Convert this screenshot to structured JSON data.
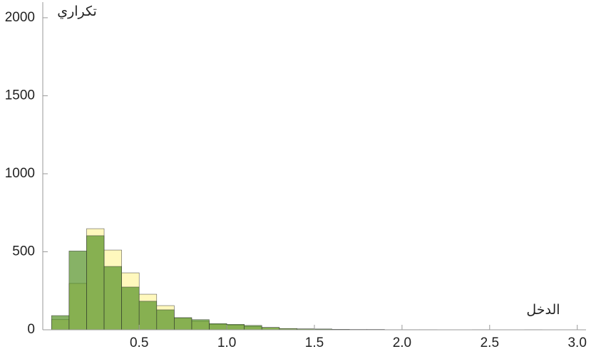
{
  "chart_data": {
    "type": "histogram",
    "x_label": "الدخل",
    "y_label": "تكراري",
    "bins": [
      0,
      0.1,
      0.2,
      0.3,
      0.4,
      0.5,
      0.6,
      0.7,
      0.8,
      0.9,
      1.0,
      1.1,
      1.2,
      1.3,
      1.4,
      1.5,
      1.6,
      1.7,
      1.8,
      1.9,
      2.0,
      2.1,
      2.2,
      2.3,
      2.4,
      2.5,
      2.6,
      2.7,
      2.8
    ],
    "series": [
      {
        "color": "#fff8bd",
        "opacity": 1,
        "values": [
          65,
          297,
          648,
          511,
          365,
          228,
          155,
          75,
          55,
          35,
          30,
          20,
          15,
          8,
          5,
          4,
          3,
          2,
          2,
          1,
          1,
          1,
          0,
          0,
          1,
          0,
          0,
          1
        ]
      },
      {
        "color": "#4e8e1e",
        "opacity": 0.68,
        "values": [
          91,
          505,
          603,
          406,
          274,
          183,
          128,
          78,
          65,
          40,
          35,
          28,
          15,
          8,
          6,
          5,
          3,
          2,
          2,
          1,
          1,
          1,
          0,
          0,
          1,
          0,
          0,
          1
        ]
      }
    ],
    "xlim": [
      -0.05,
      3.05
    ],
    "ylim": [
      0,
      2100
    ],
    "xticks": [
      0.5,
      {
        "value": 1,
        "label": "1.0"
      },
      1.5,
      {
        "value": 2,
        "label": "2.0"
      },
      2.5,
      {
        "value": 3,
        "label": "3.0"
      }
    ],
    "yticks": [
      0,
      500,
      1000,
      1500,
      2000
    ]
  }
}
